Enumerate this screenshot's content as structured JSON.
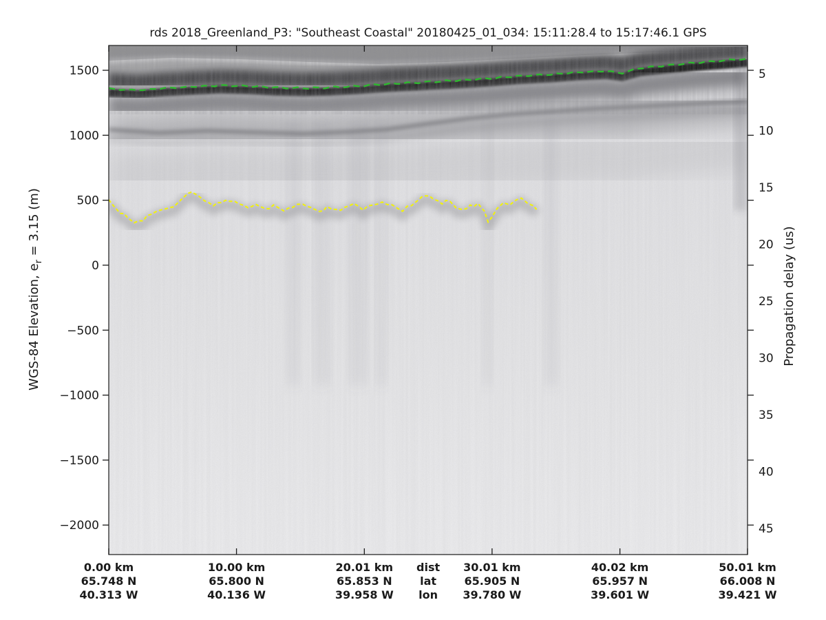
{
  "chart_data": {
    "type": "heatmap",
    "description": "Grayscale ice-penetrating radar echogram (radargram) with picked surface (green dashed) and bed (yellow dashed) layers",
    "title": "rds 2018_Greenland_P3: \"Southeast Coastal\"  20180425_01_034: 15:11:28.4 to 15:17:46.1 GPS",
    "grid": false,
    "legend": "none",
    "left_axis": {
      "label": "WGS-84 Elevation, e_r = 3.15 (m)",
      "label_parts": {
        "pre": "WGS-84 Elevation, e",
        "sub": "r",
        "post": " = 3.15 (m)"
      },
      "tick_values": [
        1500,
        1000,
        500,
        0,
        -500,
        -1000,
        -1500,
        -2000
      ],
      "tick_labels": [
        "1500",
        "1000",
        "500",
        "0",
        "−500",
        "−1000",
        "−1500",
        "−2000"
      ],
      "range_m": [
        1691,
        -2227
      ]
    },
    "right_axis": {
      "label": "Propagation delay (us)",
      "tick_values": [
        5,
        10,
        15,
        20,
        25,
        30,
        35,
        40,
        45
      ],
      "tick_labels": [
        "5",
        "10",
        "15",
        "20",
        "25",
        "30",
        "35",
        "40",
        "45"
      ],
      "range_us": [
        2.5,
        47.3
      ]
    },
    "x_axis": {
      "range_km": [
        0,
        50.01
      ],
      "header": {
        "dist": "dist",
        "lat": "lat",
        "lon": "lon"
      },
      "columns": [
        {
          "km": 0,
          "dist": "0.00 km",
          "lat": "65.748 N",
          "lon": "40.313 W"
        },
        {
          "km": 10.0,
          "dist": "10.00 km",
          "lat": "65.800 N",
          "lon": "40.136 W"
        },
        {
          "km": 20.01,
          "dist": "20.01 km",
          "lat": "65.853 N",
          "lon": "39.958 W"
        },
        {
          "km": 30.01,
          "dist": "30.01 km",
          "lat": "65.905 N",
          "lon": "39.780 W"
        },
        {
          "km": 40.02,
          "dist": "40.02 km",
          "lat": "65.957 N",
          "lon": "39.601 W"
        },
        {
          "km": 50.01,
          "dist": "50.01 km",
          "lat": "66.008 N",
          "lon": "39.421 W"
        }
      ]
    },
    "colors": {
      "surface_pick": "#2eb82e",
      "bed_pick": "#f2f20a",
      "surface_return_band": "#141414",
      "above_surface": "#a9a9ab",
      "background_top": "#d6d6d9",
      "background_bottom": "#ededef"
    },
    "series": [
      {
        "name": "surface_pick",
        "style": "dashed",
        "color_key": "surface_pick",
        "km": [
          0,
          2.3,
          4.4,
          6.6,
          8.7,
          10.9,
          13.0,
          15.2,
          17.3,
          19.5,
          21.7,
          23.8,
          26.0,
          28.1,
          30.3,
          32.4,
          34.6,
          36.7,
          38.9,
          40.2,
          41.6,
          43.7,
          45.9,
          48.1,
          50.01
        ],
        "elev_m": [
          1352,
          1341,
          1357,
          1368,
          1378,
          1373,
          1362,
          1357,
          1362,
          1373,
          1389,
          1399,
          1410,
          1421,
          1436,
          1452,
          1463,
          1479,
          1489,
          1473,
          1511,
          1532,
          1553,
          1569,
          1585
        ]
      },
      {
        "name": "bed_pick",
        "style": "dashed",
        "color_key": "bed_pick",
        "km": [
          0,
          0.4,
          0.9,
          1.5,
          2.0,
          2.7,
          3.3,
          4.1,
          4.8,
          5.4,
          5.9,
          6.5,
          7.0,
          7.5,
          8.2,
          8.8,
          9.5,
          10.2,
          10.9,
          11.5,
          12.2,
          12.9,
          13.7,
          14.4,
          15.2,
          15.8,
          16.5,
          17.1,
          17.8,
          18.5,
          19.2,
          19.9,
          20.7,
          21.4,
          22.2,
          23.0,
          23.7,
          24.2,
          24.8,
          25.4,
          26.1,
          26.7,
          27.2,
          27.7,
          28.3,
          28.9,
          29.4,
          29.7,
          30.0,
          30.4,
          30.9,
          31.4,
          31.9,
          32.3,
          32.8,
          33.2,
          33.5
        ],
        "elev_m": [
          493,
          456,
          408,
          366,
          334,
          345,
          398,
          424,
          440,
          477,
          525,
          572,
          541,
          493,
          466,
          482,
          503,
          471,
          445,
          466,
          434,
          456,
          424,
          450,
          471,
          445,
          408,
          450,
          419,
          445,
          471,
          434,
          461,
          487,
          456,
          424,
          461,
          509,
          535,
          514,
          477,
          498,
          445,
          419,
          456,
          471,
          408,
          334,
          371,
          445,
          477,
          461,
          498,
          519,
          482,
          456,
          429
        ]
      },
      {
        "name": "internal_layer",
        "style": "diffuse-dark",
        "km": [
          0,
          3.9,
          7.7,
          11.4,
          15.2,
          19.0,
          21.7,
          24.9,
          28.1,
          31.4,
          34.6,
          37.8,
          41.1,
          44.3,
          47.5,
          50.01
        ],
        "elev_m": [
          1044,
          1018,
          1034,
          1023,
          1012,
          1028,
          1044,
          1087,
          1129,
          1161,
          1182,
          1203,
          1219,
          1235,
          1251,
          1262
        ]
      },
      {
        "name": "clutter_top",
        "style": "diffuse-light",
        "km": [
          0,
          5,
          10.3,
          15.7,
          21.1,
          26.5,
          31.9,
          37.3,
          42.7,
          46.4,
          50.01
        ],
        "elev_m": [
          1574,
          1596,
          1585,
          1564,
          1548,
          1564,
          1590,
          1617,
          1638,
          1648,
          1664
        ]
      }
    ]
  }
}
